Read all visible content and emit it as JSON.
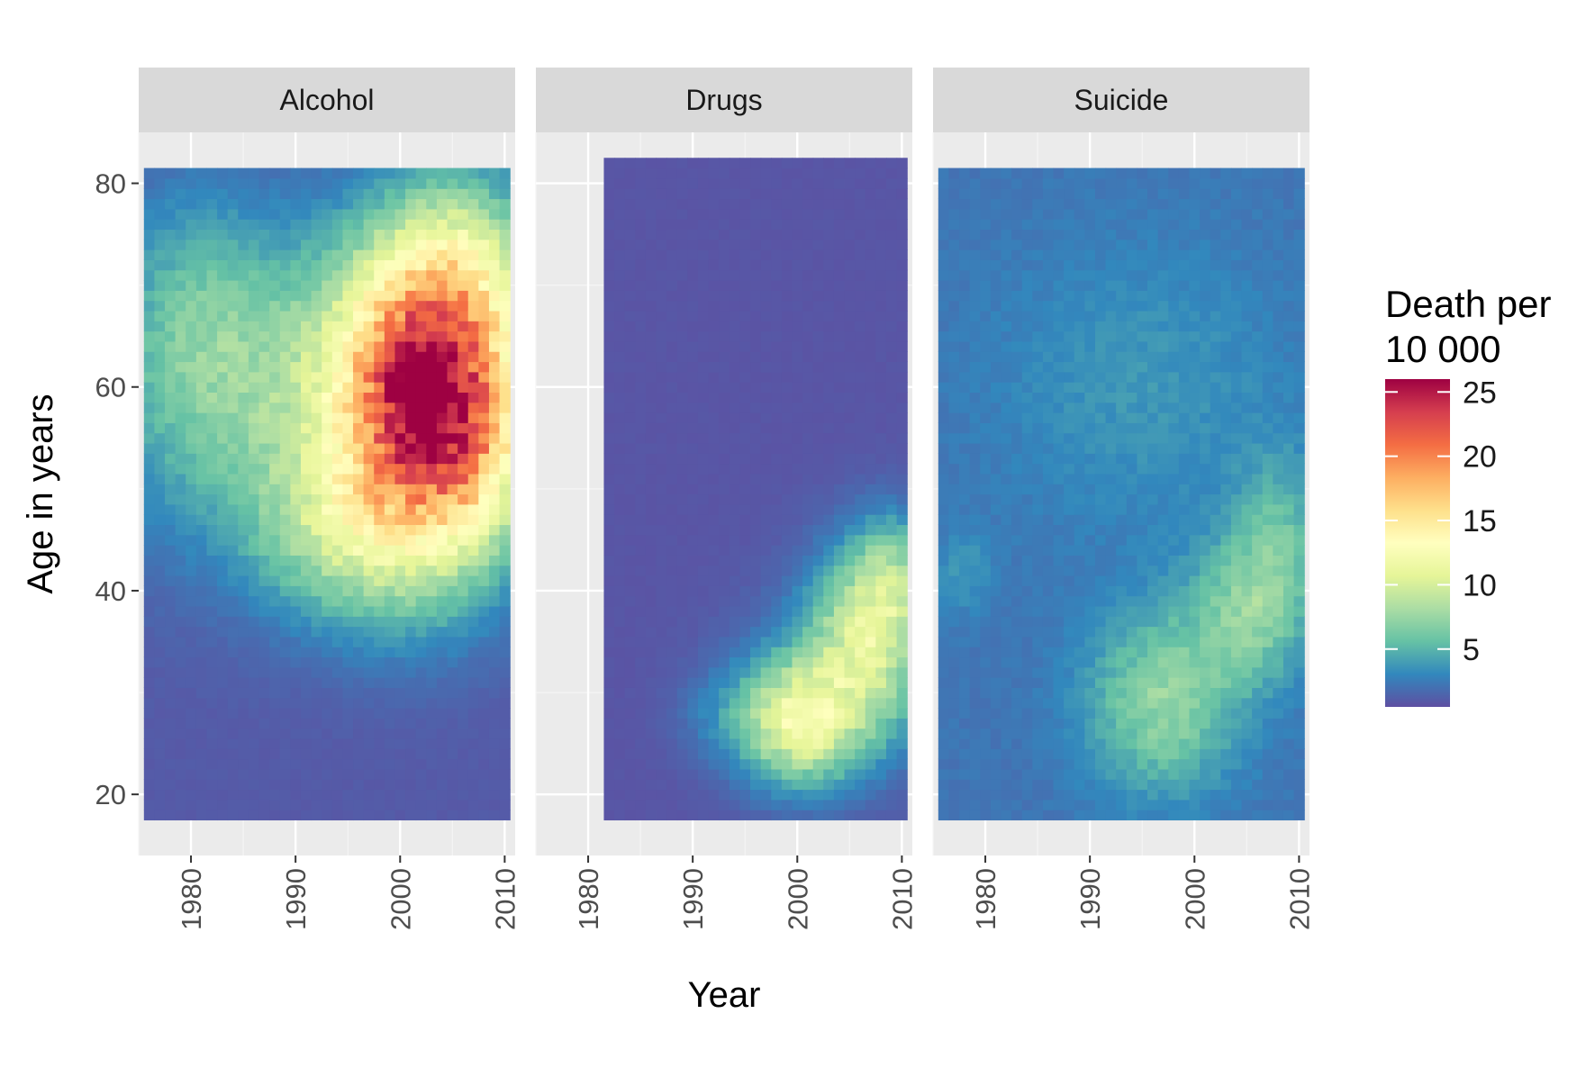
{
  "chart_data": {
    "type": "heatmap",
    "xlabel": "Year",
    "ylabel": "Age in years",
    "x_ticks": [
      1980,
      1990,
      2000,
      2010
    ],
    "y_ticks": [
      20,
      40,
      60,
      80
    ],
    "xlim": [
      1975,
      2011
    ],
    "ylim": [
      14,
      85
    ],
    "grid": true,
    "legend": {
      "title_lines": [
        "Death per",
        "10 000"
      ],
      "ticks": [
        5,
        10,
        15,
        20,
        25
      ],
      "range": [
        0.5,
        26
      ],
      "placement": "right",
      "colors": [
        "#5E4FA2",
        "#3288BD",
        "#66C2A5",
        "#ABDDA4",
        "#E6F598",
        "#FFFFBF",
        "#FEE08B",
        "#FDAE61",
        "#F46D43",
        "#D53E4F",
        "#9E0142"
      ]
    },
    "panels": [
      {
        "name": "Alcohol",
        "x_range": [
          1976,
          2010
        ],
        "y_range": [
          18,
          81
        ],
        "background": 1.0,
        "blobs": [
          {
            "x": 2002,
            "y": 60,
            "sx": 6,
            "sy": 9,
            "value": 17
          },
          {
            "x": 2002,
            "y": 60,
            "sx": 1.5,
            "sy": 2.5,
            "value": 7
          },
          {
            "x": 2005,
            "y": 62,
            "sx": 6,
            "sy": 12,
            "value": 6
          },
          {
            "x": 2007,
            "y": 54,
            "sx": 4,
            "sy": 6,
            "value": 4
          },
          {
            "x": 1999,
            "y": 46,
            "sx": 7,
            "sy": 7,
            "value": 6
          },
          {
            "x": 2006,
            "y": 72,
            "sx": 5,
            "sy": 6,
            "value": 4
          },
          {
            "x": 1986,
            "y": 60,
            "sx": 10,
            "sy": 11,
            "value": 5.5
          },
          {
            "x": 1980,
            "y": 68,
            "sx": 5,
            "sy": 9,
            "value": 2
          },
          {
            "x": 1992,
            "y": 46,
            "sx": 5,
            "sy": 5,
            "value": 2
          }
        ]
      },
      {
        "name": "Drugs",
        "x_range": [
          1982,
          2010
        ],
        "y_range": [
          18,
          82
        ],
        "background": 0.8,
        "blobs": [
          {
            "x": 2000,
            "y": 27,
            "sx": 4,
            "sy": 4,
            "value": 9
          },
          {
            "x": 2007,
            "y": 36,
            "sx": 4,
            "sy": 6,
            "value": 8
          },
          {
            "x": 2009,
            "y": 42,
            "sx": 2.5,
            "sy": 4,
            "value": 4
          },
          {
            "x": 2003,
            "y": 30,
            "sx": 6,
            "sy": 6,
            "value": 3
          },
          {
            "x": 1992,
            "y": 28,
            "sx": 3,
            "sy": 3,
            "value": 1
          }
        ]
      },
      {
        "name": "Suicide",
        "x_range": [
          1976,
          2010
        ],
        "y_range": [
          18,
          81
        ],
        "background": 2.2,
        "blobs": [
          {
            "x": 1997,
            "y": 29,
            "sx": 5,
            "sy": 6,
            "value": 5
          },
          {
            "x": 2005,
            "y": 38,
            "sx": 4,
            "sy": 5,
            "value": 4
          },
          {
            "x": 2008,
            "y": 45,
            "sx": 3,
            "sy": 6,
            "value": 3
          },
          {
            "x": 1978,
            "y": 42,
            "sx": 2,
            "sy": 3,
            "value": 1.5
          },
          {
            "x": 1995,
            "y": 60,
            "sx": 10,
            "sy": 10,
            "value": 1.5
          }
        ]
      }
    ]
  }
}
